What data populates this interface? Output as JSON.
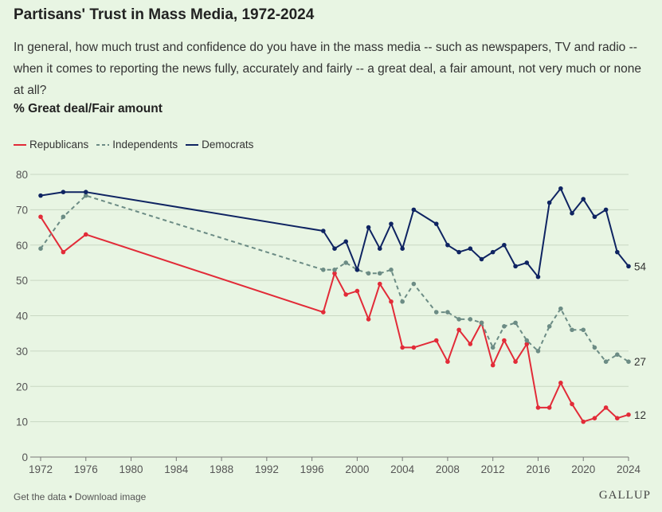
{
  "header": {
    "title": "Partisans' Trust in Mass Media, 1972-2024",
    "question": "In general, how much trust and confidence do you have in the mass media -- such as newspapers, TV and radio -- when it comes to reporting the news fully, accurately and fairly -- a great deal, a fair amount, not very much or none at all?",
    "measure": "% Great deal/Fair amount"
  },
  "footer": {
    "get_data": "Get the data",
    "separator": " • ",
    "download": "Download image",
    "brand": "GALLUP"
  },
  "colors": {
    "republicans": "#e22b38",
    "independents": "#6c8c85",
    "democrats": "#0f2462",
    "grid": "#c9d8c3",
    "axis_text": "#555555"
  },
  "chart_data": {
    "type": "line",
    "title": "Partisans' Trust in Mass Media, 1972-2024",
    "ylabel": "% Great deal/Fair amount",
    "xlabel": "",
    "xlim": [
      1972,
      2024
    ],
    "ylim": [
      0,
      80
    ],
    "xticks": [
      1972,
      1976,
      1980,
      1984,
      1988,
      1992,
      1996,
      2000,
      2004,
      2008,
      2012,
      2016,
      2020,
      2024
    ],
    "yticks": [
      0,
      10,
      20,
      30,
      40,
      50,
      60,
      70,
      80
    ],
    "grid": true,
    "legend_position": "top-left",
    "series": [
      {
        "name": "Republicans",
        "style": "solid",
        "color": "#e22b38",
        "end_label": "12",
        "x": [
          1972,
          1974,
          1976,
          1997,
          1998,
          1999,
          2000,
          2001,
          2002,
          2003,
          2004,
          2005,
          2007,
          2008,
          2009,
          2010,
          2011,
          2012,
          2013,
          2014,
          2015,
          2016,
          2017,
          2018,
          2019,
          2020,
          2021,
          2022,
          2023,
          2024
        ],
        "y": [
          68,
          58,
          63,
          41,
          52,
          46,
          47,
          39,
          49,
          44,
          31,
          31,
          33,
          27,
          36,
          32,
          38,
          26,
          33,
          27,
          32,
          14,
          14,
          21,
          15,
          10,
          11,
          14,
          11,
          12
        ]
      },
      {
        "name": "Independents",
        "style": "dashed",
        "color": "#6c8c85",
        "end_label": "27",
        "x": [
          1972,
          1974,
          1976,
          1997,
          1998,
          1999,
          2000,
          2001,
          2002,
          2003,
          2004,
          2005,
          2007,
          2008,
          2009,
          2010,
          2011,
          2012,
          2013,
          2014,
          2015,
          2016,
          2017,
          2018,
          2019,
          2020,
          2021,
          2022,
          2023,
          2024
        ],
        "y": [
          59,
          68,
          74,
          53,
          53,
          55,
          53,
          52,
          52,
          53,
          44,
          49,
          41,
          41,
          39,
          39,
          38,
          31,
          37,
          38,
          33,
          30,
          37,
          42,
          36,
          36,
          31,
          27,
          29,
          27
        ]
      },
      {
        "name": "Democrats",
        "style": "solid",
        "color": "#0f2462",
        "end_label": "54",
        "x": [
          1972,
          1974,
          1976,
          1997,
          1998,
          1999,
          2000,
          2001,
          2002,
          2003,
          2004,
          2005,
          2007,
          2008,
          2009,
          2010,
          2011,
          2012,
          2013,
          2014,
          2015,
          2016,
          2017,
          2018,
          2019,
          2020,
          2021,
          2022,
          2023,
          2024
        ],
        "y": [
          74,
          75,
          75,
          64,
          59,
          61,
          53,
          65,
          59,
          66,
          59,
          70,
          66,
          60,
          58,
          59,
          56,
          58,
          60,
          54,
          55,
          51,
          72,
          76,
          69,
          73,
          68,
          70,
          58,
          54
        ]
      }
    ]
  }
}
